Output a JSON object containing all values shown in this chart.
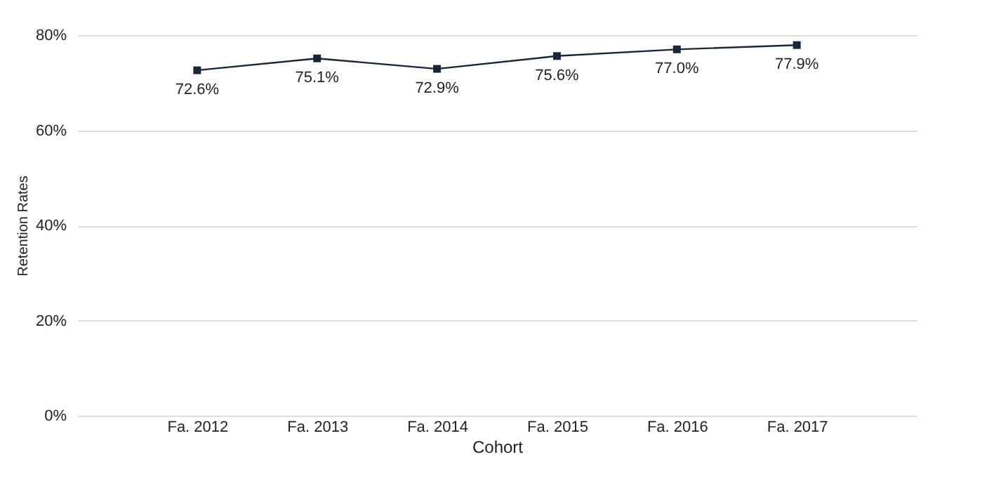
{
  "chart_data": {
    "type": "line",
    "xlabel": "Cohort",
    "ylabel": "Retention Rates",
    "categories": [
      "Fa. 2012",
      "Fa. 2013",
      "Fa. 2014",
      "Fa. 2015",
      "Fa. 2016",
      "Fa. 2017"
    ],
    "series": [
      {
        "color": "#1a2638",
        "values": [
          72.6,
          75.1,
          72.9,
          75.6,
          77.0,
          77.9
        ],
        "value_labels": [
          "72.6%",
          "75.1%",
          "72.9%",
          "75.6%",
          "77.0%",
          "77.9%"
        ]
      }
    ],
    "ylim": [
      0,
      80
    ],
    "yticks": [
      {
        "value": 0,
        "label": "0%"
      },
      {
        "value": 20,
        "label": "20%"
      },
      {
        "value": 40,
        "label": "40%"
      },
      {
        "value": 60,
        "label": "60%"
      },
      {
        "value": 80,
        "label": "80%"
      }
    ],
    "grid": "y",
    "marker": "square",
    "line_style": "solid"
  }
}
